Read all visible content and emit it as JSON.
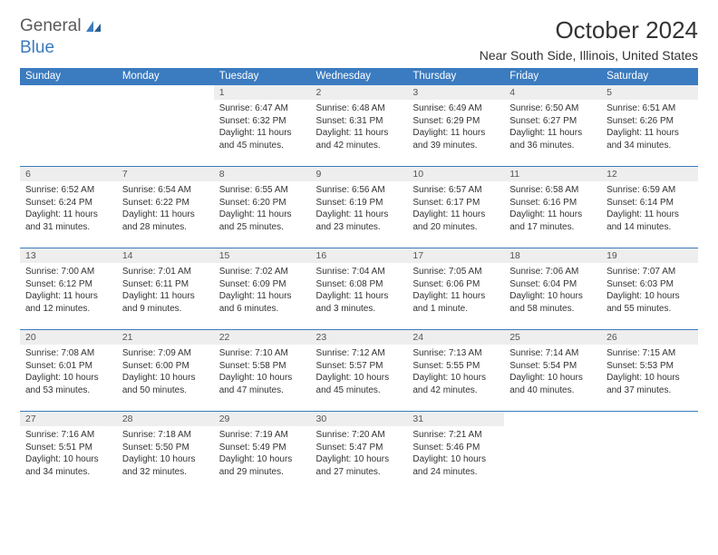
{
  "brand": {
    "word1": "General",
    "word2": "Blue"
  },
  "title": "October 2024",
  "location": "Near South Side, Illinois, United States",
  "colors": {
    "header_bg": "#3b7bbf",
    "header_fg": "#ffffff",
    "daynum_bg": "#eeeeee",
    "border": "#3b7bbf"
  },
  "weekdays": [
    "Sunday",
    "Monday",
    "Tuesday",
    "Wednesday",
    "Thursday",
    "Friday",
    "Saturday"
  ],
  "grid": [
    [
      null,
      null,
      {
        "n": "1",
        "sr": "Sunrise: 6:47 AM",
        "ss": "Sunset: 6:32 PM",
        "dl": "Daylight: 11 hours and 45 minutes."
      },
      {
        "n": "2",
        "sr": "Sunrise: 6:48 AM",
        "ss": "Sunset: 6:31 PM",
        "dl": "Daylight: 11 hours and 42 minutes."
      },
      {
        "n": "3",
        "sr": "Sunrise: 6:49 AM",
        "ss": "Sunset: 6:29 PM",
        "dl": "Daylight: 11 hours and 39 minutes."
      },
      {
        "n": "4",
        "sr": "Sunrise: 6:50 AM",
        "ss": "Sunset: 6:27 PM",
        "dl": "Daylight: 11 hours and 36 minutes."
      },
      {
        "n": "5",
        "sr": "Sunrise: 6:51 AM",
        "ss": "Sunset: 6:26 PM",
        "dl": "Daylight: 11 hours and 34 minutes."
      }
    ],
    [
      {
        "n": "6",
        "sr": "Sunrise: 6:52 AM",
        "ss": "Sunset: 6:24 PM",
        "dl": "Daylight: 11 hours and 31 minutes."
      },
      {
        "n": "7",
        "sr": "Sunrise: 6:54 AM",
        "ss": "Sunset: 6:22 PM",
        "dl": "Daylight: 11 hours and 28 minutes."
      },
      {
        "n": "8",
        "sr": "Sunrise: 6:55 AM",
        "ss": "Sunset: 6:20 PM",
        "dl": "Daylight: 11 hours and 25 minutes."
      },
      {
        "n": "9",
        "sr": "Sunrise: 6:56 AM",
        "ss": "Sunset: 6:19 PM",
        "dl": "Daylight: 11 hours and 23 minutes."
      },
      {
        "n": "10",
        "sr": "Sunrise: 6:57 AM",
        "ss": "Sunset: 6:17 PM",
        "dl": "Daylight: 11 hours and 20 minutes."
      },
      {
        "n": "11",
        "sr": "Sunrise: 6:58 AM",
        "ss": "Sunset: 6:16 PM",
        "dl": "Daylight: 11 hours and 17 minutes."
      },
      {
        "n": "12",
        "sr": "Sunrise: 6:59 AM",
        "ss": "Sunset: 6:14 PM",
        "dl": "Daylight: 11 hours and 14 minutes."
      }
    ],
    [
      {
        "n": "13",
        "sr": "Sunrise: 7:00 AM",
        "ss": "Sunset: 6:12 PM",
        "dl": "Daylight: 11 hours and 12 minutes."
      },
      {
        "n": "14",
        "sr": "Sunrise: 7:01 AM",
        "ss": "Sunset: 6:11 PM",
        "dl": "Daylight: 11 hours and 9 minutes."
      },
      {
        "n": "15",
        "sr": "Sunrise: 7:02 AM",
        "ss": "Sunset: 6:09 PM",
        "dl": "Daylight: 11 hours and 6 minutes."
      },
      {
        "n": "16",
        "sr": "Sunrise: 7:04 AM",
        "ss": "Sunset: 6:08 PM",
        "dl": "Daylight: 11 hours and 3 minutes."
      },
      {
        "n": "17",
        "sr": "Sunrise: 7:05 AM",
        "ss": "Sunset: 6:06 PM",
        "dl": "Daylight: 11 hours and 1 minute."
      },
      {
        "n": "18",
        "sr": "Sunrise: 7:06 AM",
        "ss": "Sunset: 6:04 PM",
        "dl": "Daylight: 10 hours and 58 minutes."
      },
      {
        "n": "19",
        "sr": "Sunrise: 7:07 AM",
        "ss": "Sunset: 6:03 PM",
        "dl": "Daylight: 10 hours and 55 minutes."
      }
    ],
    [
      {
        "n": "20",
        "sr": "Sunrise: 7:08 AM",
        "ss": "Sunset: 6:01 PM",
        "dl": "Daylight: 10 hours and 53 minutes."
      },
      {
        "n": "21",
        "sr": "Sunrise: 7:09 AM",
        "ss": "Sunset: 6:00 PM",
        "dl": "Daylight: 10 hours and 50 minutes."
      },
      {
        "n": "22",
        "sr": "Sunrise: 7:10 AM",
        "ss": "Sunset: 5:58 PM",
        "dl": "Daylight: 10 hours and 47 minutes."
      },
      {
        "n": "23",
        "sr": "Sunrise: 7:12 AM",
        "ss": "Sunset: 5:57 PM",
        "dl": "Daylight: 10 hours and 45 minutes."
      },
      {
        "n": "24",
        "sr": "Sunrise: 7:13 AM",
        "ss": "Sunset: 5:55 PM",
        "dl": "Daylight: 10 hours and 42 minutes."
      },
      {
        "n": "25",
        "sr": "Sunrise: 7:14 AM",
        "ss": "Sunset: 5:54 PM",
        "dl": "Daylight: 10 hours and 40 minutes."
      },
      {
        "n": "26",
        "sr": "Sunrise: 7:15 AM",
        "ss": "Sunset: 5:53 PM",
        "dl": "Daylight: 10 hours and 37 minutes."
      }
    ],
    [
      {
        "n": "27",
        "sr": "Sunrise: 7:16 AM",
        "ss": "Sunset: 5:51 PM",
        "dl": "Daylight: 10 hours and 34 minutes."
      },
      {
        "n": "28",
        "sr": "Sunrise: 7:18 AM",
        "ss": "Sunset: 5:50 PM",
        "dl": "Daylight: 10 hours and 32 minutes."
      },
      {
        "n": "29",
        "sr": "Sunrise: 7:19 AM",
        "ss": "Sunset: 5:49 PM",
        "dl": "Daylight: 10 hours and 29 minutes."
      },
      {
        "n": "30",
        "sr": "Sunrise: 7:20 AM",
        "ss": "Sunset: 5:47 PM",
        "dl": "Daylight: 10 hours and 27 minutes."
      },
      {
        "n": "31",
        "sr": "Sunrise: 7:21 AM",
        "ss": "Sunset: 5:46 PM",
        "dl": "Daylight: 10 hours and 24 minutes."
      },
      null,
      null
    ]
  ]
}
